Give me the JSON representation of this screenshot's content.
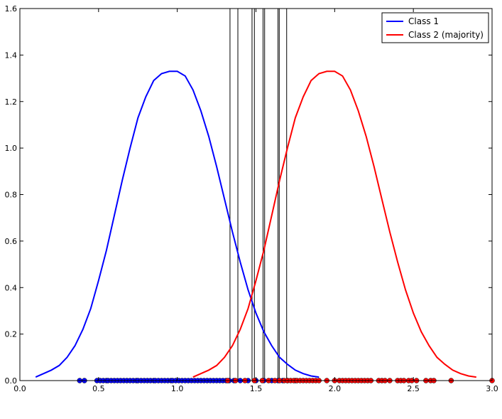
{
  "chart_data": {
    "type": "line",
    "title": "",
    "xlabel": "",
    "ylabel": "",
    "xlim": [
      0.0,
      3.0
    ],
    "ylim": [
      0.0,
      1.6
    ],
    "grid": false,
    "legend_placement": "top-right",
    "x_ticks": [
      0.0,
      0.5,
      1.0,
      1.5,
      2.0,
      2.5,
      3.0
    ],
    "x_tick_labels": [
      "0.0",
      "0.5",
      "1.0",
      "1.5",
      "2.0",
      "2.5",
      "3.0"
    ],
    "y_ticks": [
      0.0,
      0.2,
      0.4,
      0.6,
      0.8,
      1.0,
      1.2,
      1.4,
      1.6
    ],
    "y_tick_labels": [
      "0.0",
      "0.2",
      "0.4",
      "0.6",
      "0.8",
      "1.0",
      "1.2",
      "1.4",
      "1.6"
    ],
    "series": [
      {
        "name": "Class 1",
        "color": "#0000ff",
        "x": [
          0.1,
          0.15,
          0.2,
          0.25,
          0.3,
          0.35,
          0.4,
          0.45,
          0.5,
          0.55,
          0.6,
          0.65,
          0.7,
          0.75,
          0.8,
          0.85,
          0.9,
          0.95,
          1.0,
          1.05,
          1.1,
          1.15,
          1.2,
          1.25,
          1.3,
          1.35,
          1.4,
          1.45,
          1.5,
          1.55,
          1.6,
          1.65,
          1.7,
          1.75,
          1.8,
          1.85,
          1.9
        ],
        "y": [
          0.015,
          0.03,
          0.045,
          0.065,
          0.1,
          0.15,
          0.22,
          0.31,
          0.43,
          0.56,
          0.71,
          0.86,
          1.0,
          1.13,
          1.22,
          1.29,
          1.32,
          1.33,
          1.33,
          1.31,
          1.25,
          1.16,
          1.05,
          0.92,
          0.78,
          0.64,
          0.51,
          0.39,
          0.29,
          0.21,
          0.15,
          0.1,
          0.07,
          0.045,
          0.03,
          0.02,
          0.015
        ]
      },
      {
        "name": "Class 2 (majority)",
        "color": "#ff0000",
        "x": [
          1.1,
          1.15,
          1.2,
          1.25,
          1.3,
          1.35,
          1.4,
          1.45,
          1.5,
          1.55,
          1.6,
          1.65,
          1.7,
          1.75,
          1.8,
          1.85,
          1.9,
          1.95,
          2.0,
          2.05,
          2.1,
          2.15,
          2.2,
          2.25,
          2.3,
          2.35,
          2.4,
          2.45,
          2.5,
          2.55,
          2.6,
          2.65,
          2.7,
          2.75,
          2.8,
          2.85,
          2.9
        ],
        "y": [
          0.015,
          0.03,
          0.045,
          0.065,
          0.1,
          0.15,
          0.22,
          0.31,
          0.43,
          0.56,
          0.71,
          0.86,
          1.0,
          1.13,
          1.22,
          1.29,
          1.32,
          1.33,
          1.33,
          1.31,
          1.25,
          1.16,
          1.05,
          0.92,
          0.78,
          0.64,
          0.51,
          0.39,
          0.29,
          0.21,
          0.15,
          0.1,
          0.07,
          0.045,
          0.03,
          0.02,
          0.015
        ]
      }
    ],
    "points": [
      {
        "class": "Class 1",
        "color": "#0000ff",
        "y": 0.0,
        "x": [
          0.38,
          0.41,
          0.49,
          0.51,
          0.53,
          0.55,
          0.56,
          0.58,
          0.6,
          0.62,
          0.64,
          0.66,
          0.68,
          0.7,
          0.72,
          0.74,
          0.75,
          0.77,
          0.79,
          0.81,
          0.83,
          0.85,
          0.86,
          0.88,
          0.9,
          0.92,
          0.94,
          0.96,
          0.97,
          0.99,
          1.01,
          1.03,
          1.05,
          1.07,
          1.09,
          1.11,
          1.13,
          1.15,
          1.17,
          1.19,
          1.21,
          1.23,
          1.25,
          1.27,
          1.29,
          1.31,
          1.33,
          1.36,
          1.4,
          1.45,
          1.5,
          1.55,
          1.6,
          1.64,
          1.67,
          1.7,
          1.75
        ]
      },
      {
        "class": "Class 2 (majority)",
        "color": "#ff0000",
        "y": 0.0,
        "x": [
          1.32,
          1.37,
          1.43,
          1.49,
          1.54,
          1.58,
          1.62,
          1.65,
          1.68,
          1.7,
          1.72,
          1.74,
          1.76,
          1.78,
          1.8,
          1.82,
          1.84,
          1.86,
          1.88,
          1.9,
          1.95,
          2.0,
          2.03,
          2.05,
          2.07,
          2.09,
          2.11,
          2.13,
          2.15,
          2.17,
          2.19,
          2.21,
          2.23,
          2.28,
          2.3,
          2.32,
          2.35,
          2.4,
          2.42,
          2.44,
          2.47,
          2.49,
          2.52,
          2.58,
          2.61,
          2.63,
          2.74,
          3.0
        ]
      }
    ],
    "vertical_lines": [
      1.335,
      1.385,
      1.475,
      1.49,
      1.545,
      1.555,
      1.64,
      1.648,
      1.695
    ],
    "vline_color": "#000000"
  }
}
